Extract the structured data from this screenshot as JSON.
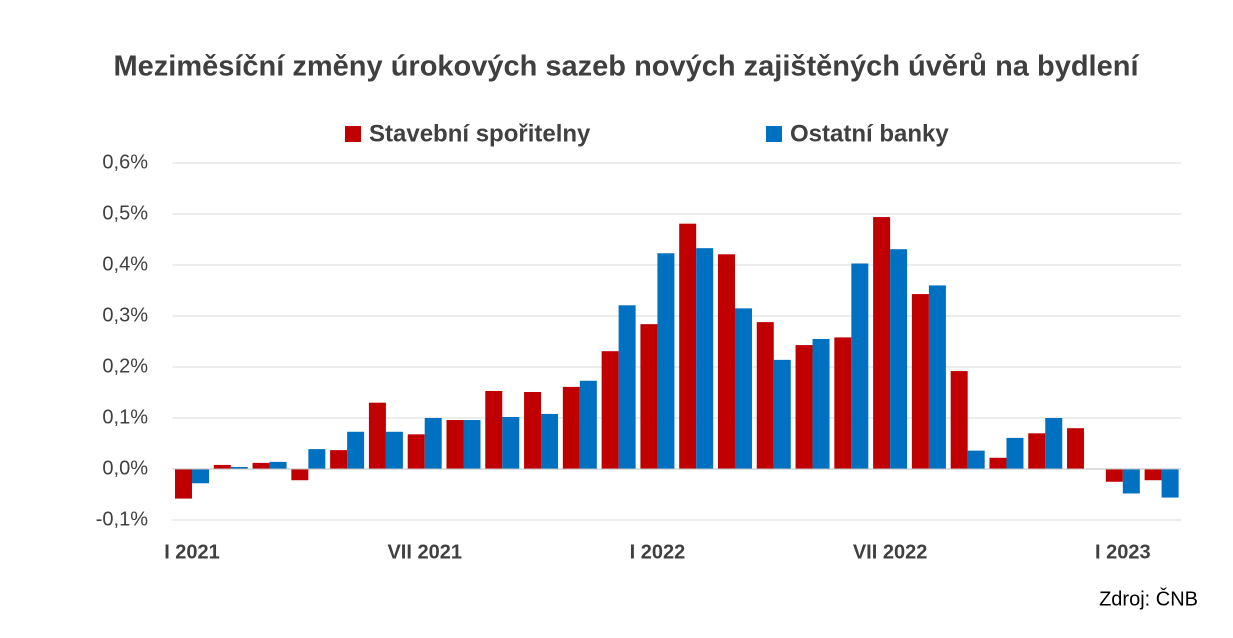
{
  "chart_data": {
    "type": "bar",
    "title": "Meziměsíční změny úrokových sazeb nových zajištěných úvěrů na bydlení",
    "source": "Zdroj: ČNB",
    "categories": [
      "I 2021",
      null,
      null,
      null,
      null,
      null,
      "VII 2021",
      null,
      null,
      null,
      null,
      null,
      "I 2022",
      null,
      null,
      null,
      null,
      null,
      "VII 2022",
      null,
      null,
      null,
      null,
      null,
      "I 2023",
      null
    ],
    "series": [
      {
        "name": "Stavební spořitelny",
        "color": "#c00000",
        "values": [
          -0.058,
          0.008,
          0.012,
          -0.022,
          0.037,
          0.13,
          0.068,
          0.096,
          0.153,
          0.151,
          0.161,
          0.231,
          0.284,
          0.481,
          0.421,
          0.288,
          0.243,
          0.258,
          0.494,
          0.343,
          0.192,
          0.022,
          0.07,
          0.08,
          -0.025,
          -0.022
        ]
      },
      {
        "name": "Ostatní banky",
        "color": "#0070c0",
        "values": [
          -0.028,
          0.004,
          0.014,
          0.039,
          0.073,
          0.073,
          0.1,
          0.096,
          0.102,
          0.108,
          0.173,
          0.321,
          0.423,
          0.433,
          0.315,
          0.214,
          0.255,
          0.403,
          0.431,
          0.36,
          0.036,
          0.061,
          0.1,
          0,
          -0.048,
          -0.056
        ]
      }
    ],
    "ylim": [
      -0.1,
      0.6
    ],
    "yticks": [
      {
        "value": -0.1,
        "label": "-0,1%"
      },
      {
        "value": 0,
        "label": "0,0%"
      },
      {
        "value": 0.1,
        "label": "0,1%"
      },
      {
        "value": 0.2,
        "label": "0,2%"
      },
      {
        "value": 0.3,
        "label": "0,3%"
      },
      {
        "value": 0.4,
        "label": "0,4%"
      },
      {
        "value": 0.5,
        "label": "0,5%"
      },
      {
        "value": 0.6,
        "label": "0,6%"
      }
    ],
    "grid": true,
    "legend": "top"
  }
}
